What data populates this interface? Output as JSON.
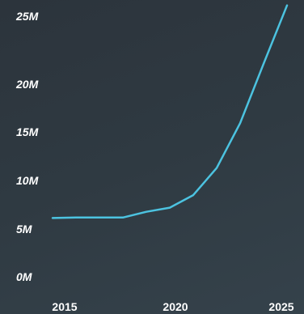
{
  "chart_data": {
    "type": "line",
    "title": "",
    "xlabel": "",
    "ylabel": "",
    "x": [
      2015,
      2016,
      2017,
      2018,
      2019,
      2020,
      2021,
      2022,
      2023,
      2024,
      2025
    ],
    "series": [
      {
        "name": "",
        "color": "#4cc3e0",
        "values": [
          5.4,
          5.45,
          5.45,
          5.45,
          6.0,
          6.4,
          7.6,
          10.2,
          14.5,
          20.2,
          25.8
        ]
      }
    ],
    "xlim": [
      2015,
      2025
    ],
    "ylim": [
      0,
      25
    ],
    "y_ticks": [
      {
        "value": 0,
        "label": "0M"
      },
      {
        "value": 5,
        "label": "5M"
      },
      {
        "value": 10,
        "label": "10M"
      },
      {
        "value": 15,
        "label": "15M"
      },
      {
        "value": 20,
        "label": "20M"
      },
      {
        "value": 25,
        "label": "25M"
      }
    ],
    "x_ticks": [
      {
        "value": 2015,
        "label": "2015"
      },
      {
        "value": 2020,
        "label": "2020"
      },
      {
        "value": 2025,
        "label": "2025"
      }
    ],
    "grid": false,
    "legend": "none"
  }
}
